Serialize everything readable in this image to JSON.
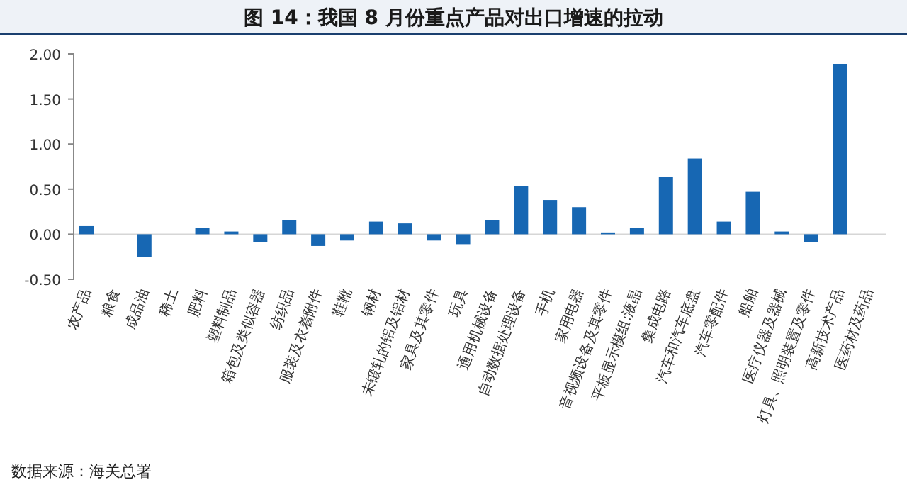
{
  "chart_data": {
    "type": "bar",
    "title": "图 14：我国 8 月份重点产品对出口增速的拉动",
    "categories": [
      "农产品",
      "粮食",
      "成品油",
      "稀土",
      "肥料",
      "塑料制品",
      "箱包及类似容器",
      "纺织品",
      "服装及衣着附件",
      "鞋靴",
      "钢材",
      "未锻轧的铝及铝材",
      "家具及其零件",
      "玩具",
      "通用机械设备",
      "自动数据处理设备",
      "手机",
      "家用电器",
      "音视频设备及其零件",
      "平板显示模组:液晶",
      "集成电路",
      "汽车和汽车底盘",
      "汽车零配件",
      "船舶",
      "医疗仪器及器械",
      "灯具、照明装置及零件",
      "高新技术产品",
      "医药材及药品"
    ],
    "values": [
      0.09,
      0,
      -0.25,
      0,
      0.07,
      0.03,
      -0.09,
      0.16,
      -0.13,
      -0.07,
      0.14,
      0.12,
      -0.07,
      -0.11,
      0.16,
      0.53,
      0.38,
      0.3,
      0.02,
      0.07,
      0.64,
      0.84,
      0.14,
      0.47,
      0.03,
      -0.09,
      1.89,
      0
    ],
    "color": "#1767b3",
    "ylim": [
      -0.5,
      2
    ],
    "yticks": [
      {
        "value": -0.5,
        "label": "-0.50"
      },
      {
        "value": 0,
        "label": "0.00"
      },
      {
        "value": 0.5,
        "label": "0.50"
      },
      {
        "value": 1,
        "label": "1.00"
      },
      {
        "value": 1.5,
        "label": "1.50"
      },
      {
        "value": 2,
        "label": "2.00"
      }
    ],
    "annotations": [
      "数据来源：海关总署"
    ]
  }
}
